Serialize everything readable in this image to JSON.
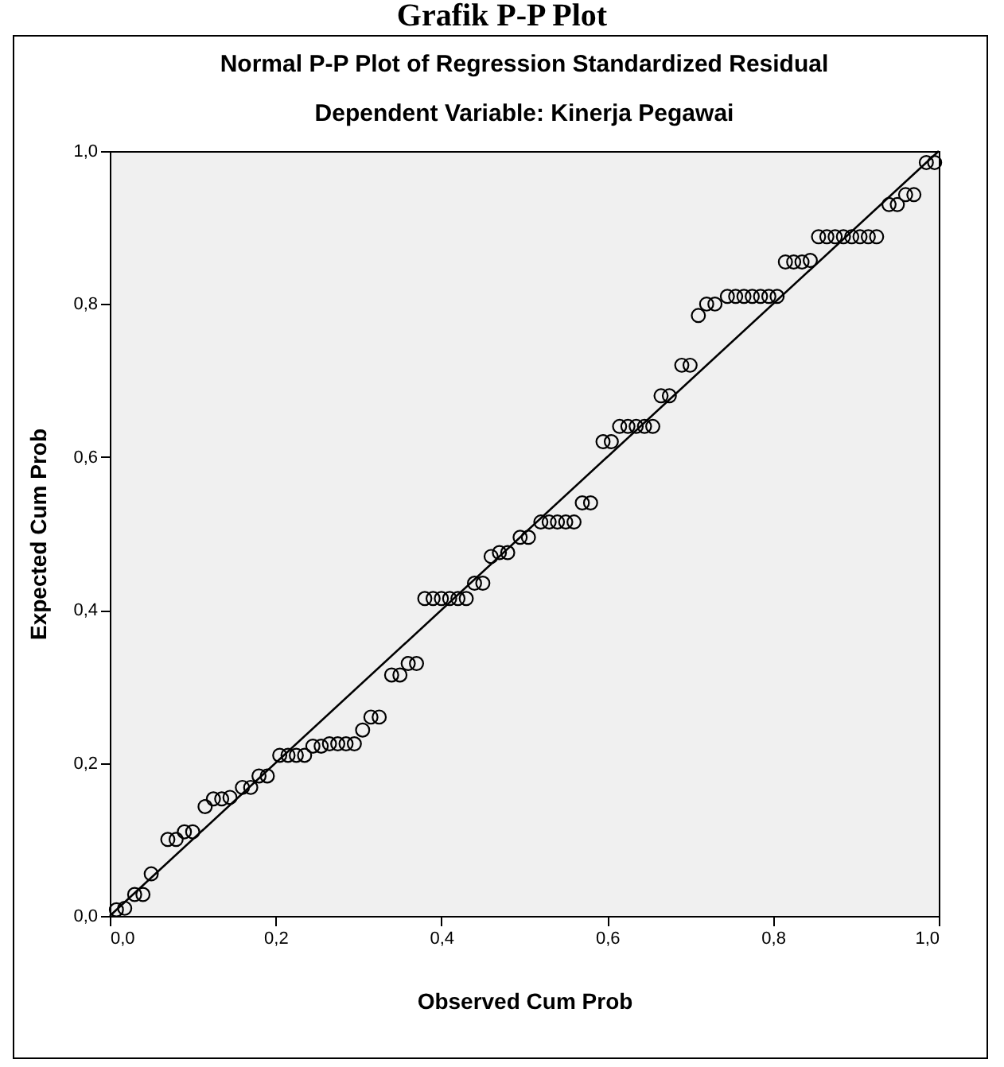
{
  "chart_data": {
    "type": "scatter",
    "title": "Normal P-P Plot of Regression Standardized Residual",
    "subtitle": "Dependent Variable: Kinerja Pegawai",
    "annotations": [
      "Grafik P-P Plot"
    ],
    "xlabel": "Observed Cum Prob",
    "ylabel": "Expected Cum Prob",
    "grid": false,
    "xlim": [
      0,
      1
    ],
    "ylim": [
      0,
      1
    ],
    "xticks": [
      {
        "value": 0,
        "label": "0,0"
      },
      {
        "value": 0.2,
        "label": "0,2"
      },
      {
        "value": 0.4,
        "label": "0,4"
      },
      {
        "value": 0.6,
        "label": "0,6"
      },
      {
        "value": 0.8,
        "label": "0,8"
      },
      {
        "value": 1,
        "label": "1,0"
      }
    ],
    "yticks": [
      {
        "value": 0,
        "label": "0,0"
      },
      {
        "value": 0.2,
        "label": "0,2"
      },
      {
        "value": 0.4,
        "label": "0,4"
      },
      {
        "value": 0.6,
        "label": "0,6"
      },
      {
        "value": 0.8,
        "label": "0,8"
      },
      {
        "value": 1,
        "label": "1,0"
      }
    ],
    "series": [
      {
        "marker": "circle",
        "color": "#000000",
        "x": [
          0.008,
          0.018,
          0.03,
          0.04,
          0.05,
          0.07,
          0.08,
          0.09,
          0.1,
          0.115,
          0.125,
          0.135,
          0.145,
          0.16,
          0.17,
          0.18,
          0.19,
          0.205,
          0.215,
          0.225,
          0.235,
          0.245,
          0.255,
          0.265,
          0.275,
          0.285,
          0.295,
          0.305,
          0.315,
          0.325,
          0.34,
          0.35,
          0.36,
          0.37,
          0.38,
          0.39,
          0.4,
          0.41,
          0.42,
          0.43,
          0.44,
          0.45,
          0.46,
          0.47,
          0.48,
          0.495,
          0.505,
          0.52,
          0.53,
          0.54,
          0.55,
          0.56,
          0.57,
          0.58,
          0.595,
          0.605,
          0.615,
          0.625,
          0.635,
          0.645,
          0.655,
          0.665,
          0.675,
          0.69,
          0.7,
          0.71,
          0.72,
          0.73,
          0.745,
          0.755,
          0.765,
          0.775,
          0.785,
          0.795,
          0.805,
          0.815,
          0.825,
          0.835,
          0.845,
          0.855,
          0.865,
          0.875,
          0.885,
          0.895,
          0.905,
          0.915,
          0.925,
          0.94,
          0.95,
          0.96,
          0.97,
          0.985,
          0.995
        ],
        "values": [
          0.008,
          0.01,
          0.028,
          0.028,
          0.055,
          0.1,
          0.1,
          0.11,
          0.11,
          0.143,
          0.153,
          0.153,
          0.155,
          0.168,
          0.168,
          0.183,
          0.183,
          0.21,
          0.21,
          0.21,
          0.21,
          0.222,
          0.222,
          0.225,
          0.225,
          0.225,
          0.225,
          0.243,
          0.26,
          0.26,
          0.315,
          0.315,
          0.33,
          0.33,
          0.415,
          0.415,
          0.415,
          0.415,
          0.415,
          0.415,
          0.435,
          0.435,
          0.47,
          0.475,
          0.475,
          0.495,
          0.495,
          0.515,
          0.515,
          0.515,
          0.515,
          0.515,
          0.54,
          0.54,
          0.62,
          0.62,
          0.64,
          0.64,
          0.64,
          0.64,
          0.64,
          0.68,
          0.68,
          0.72,
          0.72,
          0.785,
          0.8,
          0.8,
          0.81,
          0.81,
          0.81,
          0.81,
          0.81,
          0.81,
          0.81,
          0.855,
          0.855,
          0.855,
          0.857,
          0.888,
          0.888,
          0.888,
          0.888,
          0.888,
          0.888,
          0.888,
          0.888,
          0.93,
          0.93,
          0.943,
          0.943,
          0.985,
          0.985
        ]
      },
      {
        "type": "line",
        "marker": "none",
        "color": "#000000",
        "x": [
          0,
          1
        ],
        "values": [
          0,
          1
        ]
      }
    ]
  }
}
